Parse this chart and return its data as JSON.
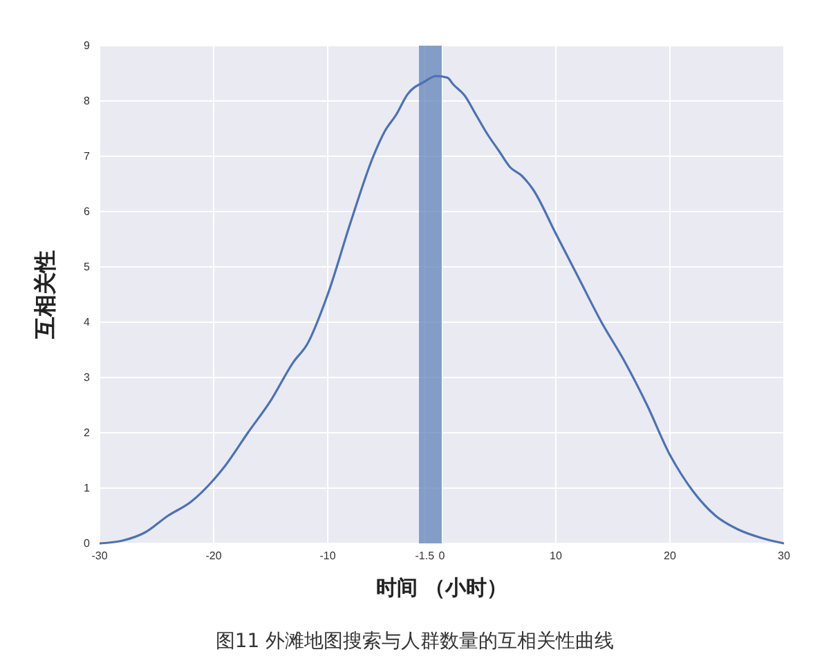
{
  "chart_data": {
    "type": "line",
    "xlabel": "时间 （小时）",
    "ylabel": "互相关性",
    "annotations": [
      "图11 外滩地图搜索与人群数量的互相关性曲线"
    ],
    "x": [
      -30,
      -28,
      -26,
      -24,
      -22,
      -20,
      -19,
      -17,
      -15,
      -13,
      -11.8,
      -10,
      -8,
      -6,
      -5,
      -4,
      -3,
      -1.5,
      -0.5,
      0.5,
      1,
      2,
      3,
      4,
      5,
      6,
      7,
      8,
      10,
      12,
      14,
      16,
      18,
      20,
      21,
      22,
      24,
      26,
      28,
      30
    ],
    "series": [
      {
        "color": "#4c72b0",
        "values": [
          0,
          0.05,
          0.2,
          0.5,
          0.75,
          1.15,
          1.4,
          2.0,
          2.58,
          3.28,
          3.6,
          4.5,
          5.8,
          7.0,
          7.45,
          7.75,
          8.12,
          8.35,
          8.45,
          8.42,
          8.3,
          8.1,
          7.75,
          7.4,
          7.1,
          6.8,
          6.65,
          6.4,
          5.6,
          4.8,
          4.0,
          3.3,
          2.5,
          1.6,
          1.25,
          0.95,
          0.5,
          0.25,
          0.1,
          0
        ]
      }
    ],
    "xlim": [
      -30,
      30
    ],
    "xticks": [
      -30,
      -20,
      -10,
      -1.5,
      0,
      10,
      20,
      30
    ],
    "ylim": [
      0,
      9
    ],
    "yticks": [
      0,
      1,
      2,
      3,
      4,
      5,
      6,
      7,
      8,
      9
    ],
    "grid": true,
    "bands": [
      {
        "axis": "x",
        "from": -2,
        "to": 0,
        "color": "#4c72b0"
      }
    ]
  }
}
